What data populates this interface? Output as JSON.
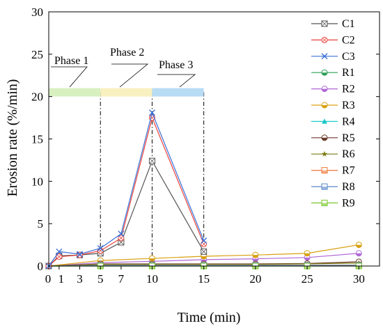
{
  "chart_data": {
    "type": "line",
    "xlabel": "Time (min)",
    "ylabel": "Erosion rate (%/min)",
    "xlim": [
      0,
      32
    ],
    "ylim": [
      0,
      30
    ],
    "xticks": [
      0,
      1,
      3,
      5,
      7,
      10,
      15,
      20,
      25,
      30
    ],
    "yticks": [
      0,
      5,
      10,
      15,
      20,
      25,
      30
    ],
    "legend_position": "right",
    "grid": false,
    "phases": [
      {
        "label": "Phase 1",
        "start": 0,
        "end": 5,
        "color": "#d8f0c0"
      },
      {
        "label": "Phase 2",
        "start": 5,
        "end": 10,
        "color": "#f8f0c0"
      },
      {
        "label": "Phase 3",
        "start": 10,
        "end": 15,
        "color": "#b8dcf4"
      }
    ],
    "phase_band_y": 20.5,
    "phase_boundaries": [
      5,
      10,
      15
    ],
    "series": [
      {
        "name": "C1",
        "color": "#555555",
        "marker": "square-x",
        "x": [
          0,
          1,
          3,
          5,
          7,
          10,
          15
        ],
        "y": [
          0,
          1.2,
          1.3,
          1.5,
          2.8,
          12.4,
          1.7
        ]
      },
      {
        "name": "C2",
        "color": "#e8413a",
        "marker": "circle-x",
        "x": [
          0,
          1,
          3,
          5,
          7,
          10,
          15
        ],
        "y": [
          0,
          1.1,
          1.3,
          1.8,
          3.3,
          17.5,
          2.6
        ]
      },
      {
        "name": "C3",
        "color": "#3a6fd8",
        "marker": "cross",
        "x": [
          0,
          1,
          3,
          5,
          7,
          10,
          15
        ],
        "y": [
          0,
          1.7,
          1.4,
          2.1,
          3.8,
          18.1,
          3.0
        ]
      },
      {
        "name": "R1",
        "color": "#2e9e58",
        "marker": "circle-half",
        "x": [
          0,
          5,
          10,
          15,
          20,
          25,
          30
        ],
        "y": [
          0,
          0.05,
          0.05,
          0.05,
          0.05,
          0.05,
          0.05
        ]
      },
      {
        "name": "R2",
        "color": "#b068d8",
        "marker": "circle-half",
        "x": [
          0,
          5,
          10,
          15,
          20,
          25,
          30
        ],
        "y": [
          0,
          0.4,
          0.55,
          0.75,
          0.85,
          1.0,
          1.5
        ]
      },
      {
        "name": "R3",
        "color": "#d8a010",
        "marker": "circle-half",
        "x": [
          0,
          5,
          10,
          15,
          20,
          25,
          30
        ],
        "y": [
          0,
          0.65,
          0.9,
          1.15,
          1.3,
          1.5,
          2.5
        ]
      },
      {
        "name": "R4",
        "color": "#18c8c8",
        "marker": "triangle",
        "x": [
          0,
          5,
          10,
          15,
          20,
          25,
          30
        ],
        "y": [
          0,
          0.02,
          0.02,
          0.02,
          0.02,
          0.02,
          0.02
        ]
      },
      {
        "name": "R5",
        "color": "#6a3a2a",
        "marker": "circle-half",
        "x": [
          0,
          5,
          10,
          15,
          20,
          25,
          30
        ],
        "y": [
          0,
          0.25,
          0.25,
          0.25,
          0.25,
          0.3,
          0.5
        ]
      },
      {
        "name": "R6",
        "color": "#7a7a10",
        "marker": "star",
        "x": [
          0,
          5,
          10,
          15,
          20,
          25,
          30
        ],
        "y": [
          0,
          0.2,
          0.2,
          0.2,
          0.2,
          0.25,
          0.35
        ]
      },
      {
        "name": "R7",
        "color": "#f07838",
        "marker": "square-half",
        "x": [
          0,
          5,
          10,
          15,
          20,
          25,
          30
        ],
        "y": [
          0,
          0.1,
          0.1,
          0.1,
          0.1,
          0.1,
          0.1
        ]
      },
      {
        "name": "R8",
        "color": "#5888c8",
        "marker": "square-half",
        "x": [
          0,
          5,
          10,
          15,
          20,
          25,
          30
        ],
        "y": [
          0,
          0.08,
          0.08,
          0.08,
          0.08,
          0.08,
          0.08
        ]
      },
      {
        "name": "R9",
        "color": "#78c828",
        "marker": "square-half",
        "x": [
          0,
          5,
          10,
          15,
          20,
          25,
          30
        ],
        "y": [
          0,
          0.0,
          0.0,
          0.0,
          0.0,
          0.0,
          0.0
        ]
      }
    ]
  }
}
